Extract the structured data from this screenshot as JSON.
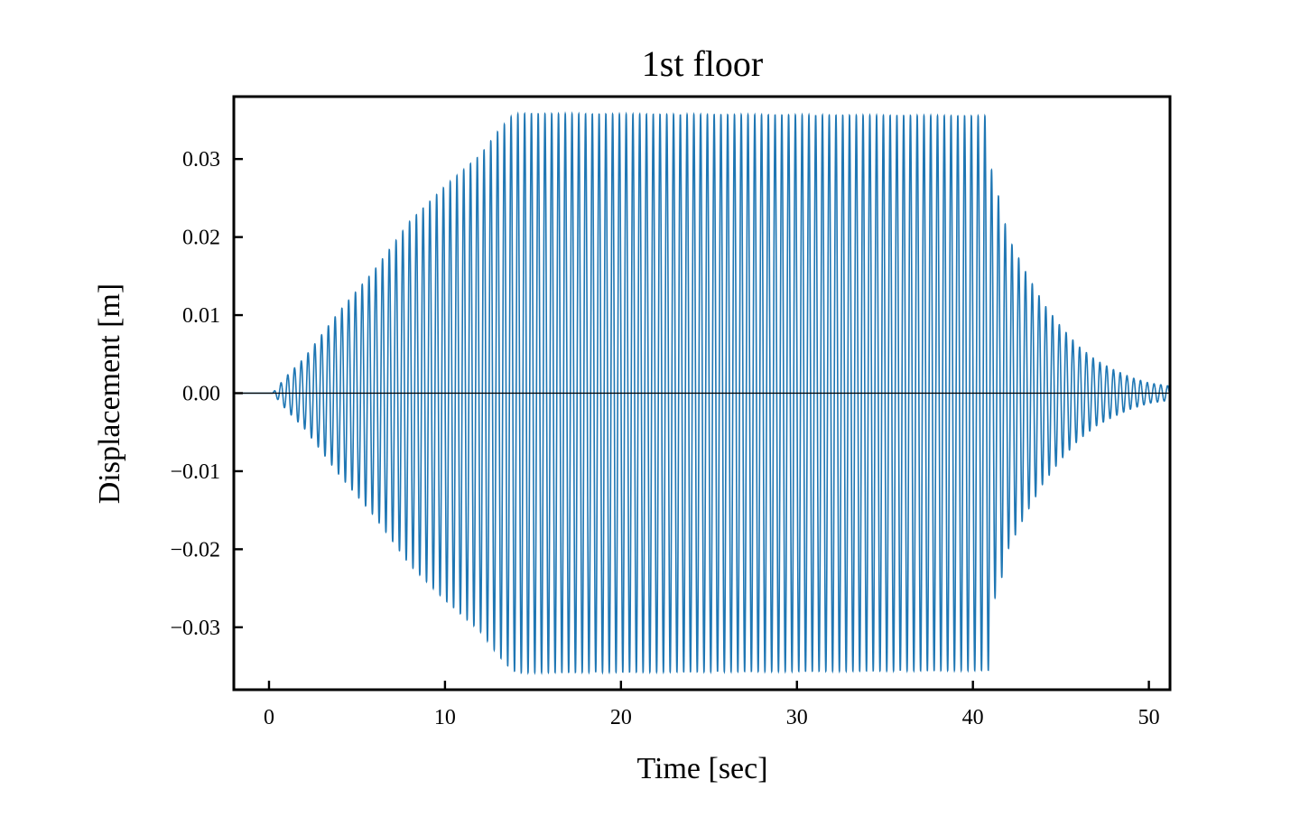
{
  "chart_data": {
    "type": "line",
    "title": "1st floor",
    "xlabel": "Time [sec]",
    "ylabel": "Displacement [m]",
    "xlim": [
      -2,
      51.2
    ],
    "ylim": [
      -0.038,
      0.038
    ],
    "xticks": [
      0,
      10,
      20,
      30,
      40,
      50
    ],
    "xtick_labels": [
      "0",
      "10",
      "20",
      "30",
      "40",
      "50"
    ],
    "yticks": [
      0.03,
      0.02,
      0.01,
      0.0,
      -0.01,
      -0.02,
      -0.03
    ],
    "ytick_labels": [
      "0.03",
      "0.02",
      "0.01",
      "0.00",
      "−0.01",
      "−0.02",
      "−0.03"
    ],
    "grid": false,
    "legend": "none",
    "tick_direction": "in",
    "colors": {
      "series": "#1f77b4",
      "zero_line": "#000000",
      "axes": "#000000"
    },
    "series": [
      {
        "envelope": {
          "t": [
            -2,
            0.2,
            1,
            2,
            4,
            6,
            8,
            10,
            12,
            13,
            13.8,
            14.2,
            40.9,
            41.1,
            41.5,
            42,
            43,
            44,
            45,
            46,
            47,
            48,
            49,
            50,
            51.2
          ],
          "amp": [
            0,
            0,
            0.0022,
            0.0045,
            0.0105,
            0.0158,
            0.022,
            0.0265,
            0.0305,
            0.0335,
            0.0355,
            0.0358,
            0.0355,
            0.027,
            0.025,
            0.02,
            0.0155,
            0.0115,
            0.0085,
            0.006,
            0.0042,
            0.003,
            0.002,
            0.0013,
            0.0009
          ]
        },
        "frequency_hz": 2.6,
        "peak_positive": 0.0358,
        "peak_negative": -0.0362
      }
    ]
  }
}
